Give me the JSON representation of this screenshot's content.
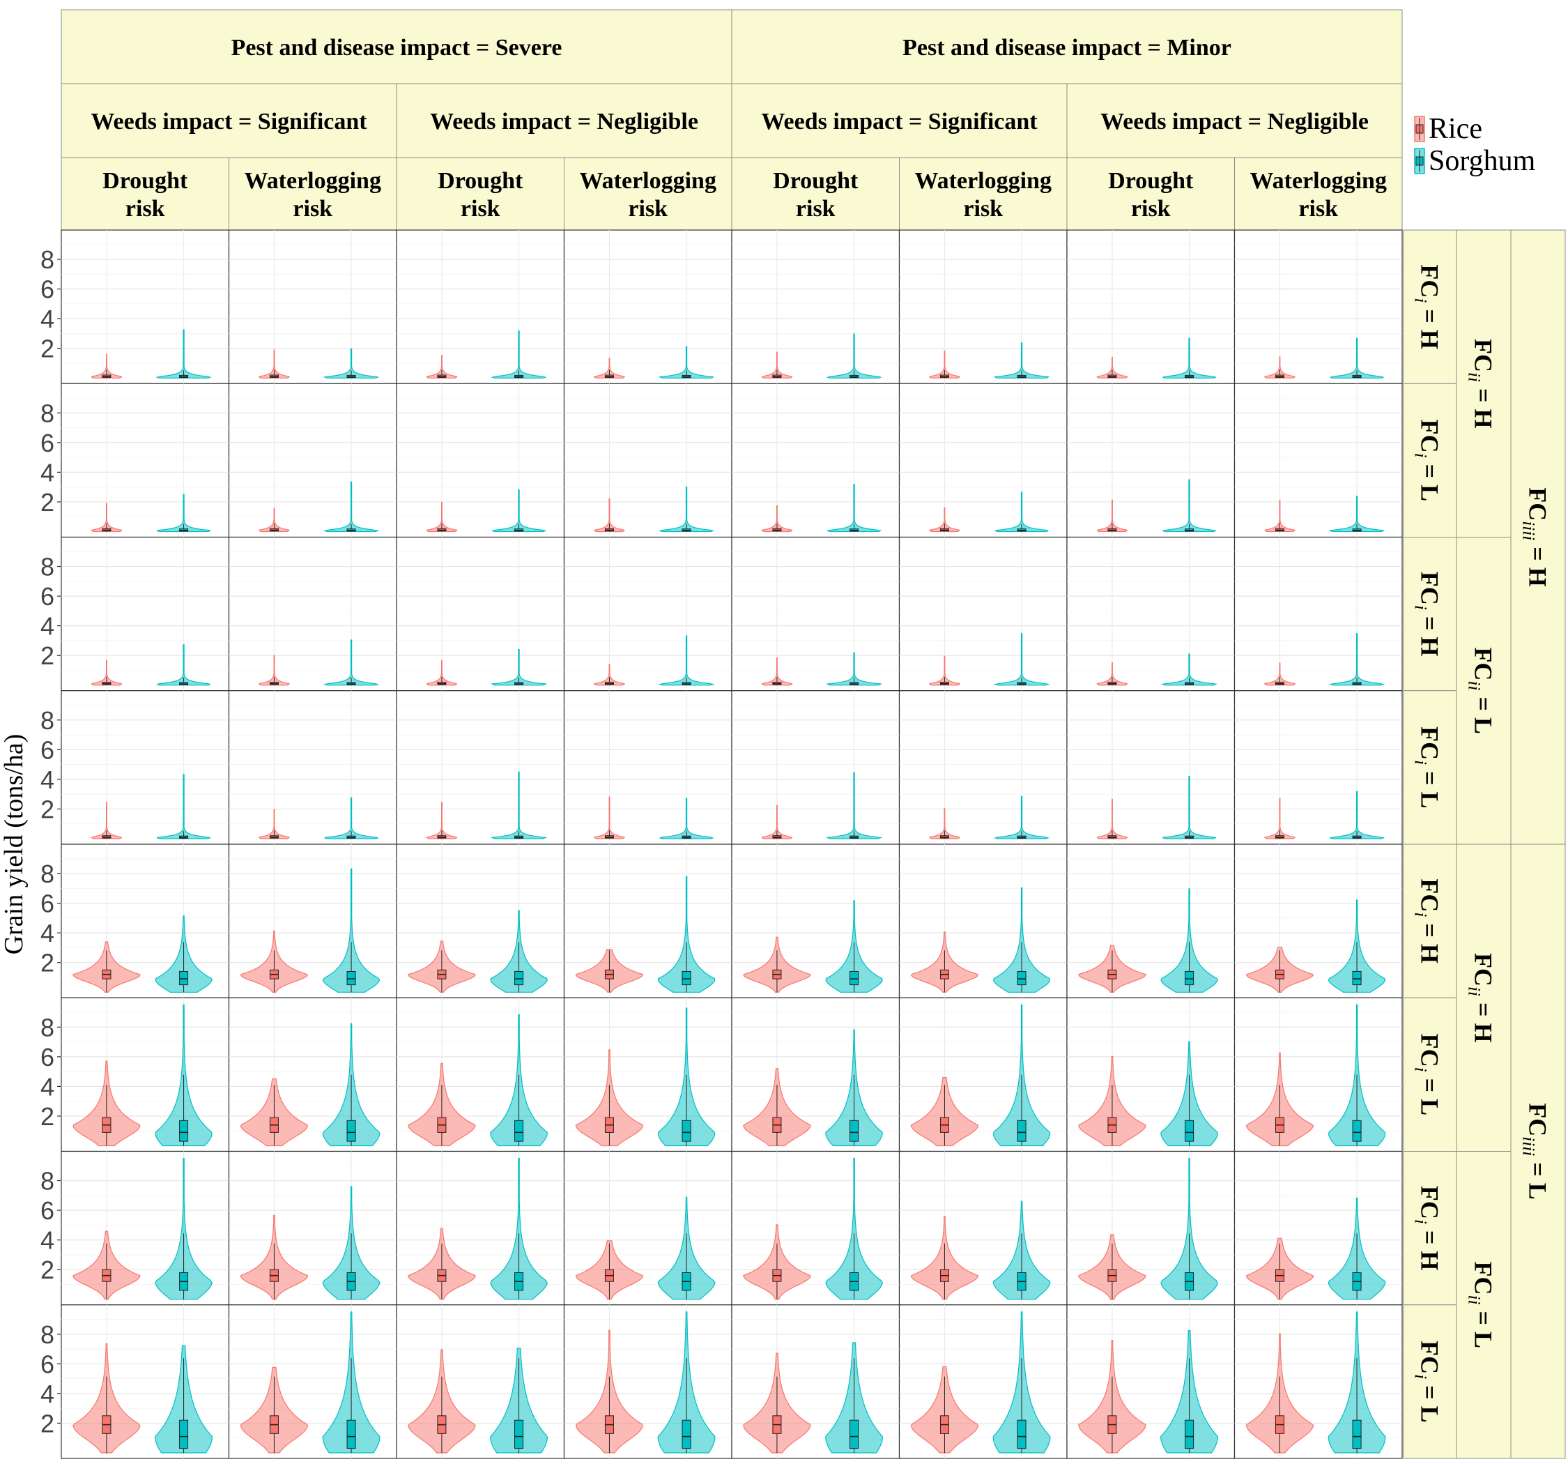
{
  "chart_data": {
    "type": "violin",
    "ylabel": "Grain yield (tons/ha)",
    "y_ticks": [
      2,
      4,
      6,
      8
    ],
    "ylim": [
      0,
      9.6
    ],
    "grid": true,
    "legend_position": "right",
    "legend": [
      {
        "name": "Rice",
        "color": "#F8766D"
      },
      {
        "name": "Sorghum",
        "color": "#00BFC4"
      }
    ],
    "col_strip_1": [
      "Pest and disease impact = Severe",
      "Pest and disease impact = Minor"
    ],
    "col_strip_2": [
      "Weeds impact = Significant",
      "Weeds impact = Negligible",
      "Weeds impact = Significant",
      "Weeds impact = Negligible"
    ],
    "col_strip_3": [
      [
        "Drought",
        "risk"
      ],
      [
        "Waterlogging",
        "risk"
      ],
      [
        "Drought",
        "risk"
      ],
      [
        "Waterlogging",
        "risk"
      ],
      [
        "Drought",
        "risk"
      ],
      [
        "Waterlogging",
        "risk"
      ],
      [
        "Drought",
        "risk"
      ],
      [
        "Waterlogging",
        "risk"
      ]
    ],
    "row_strip_fci": [
      {
        "prefix": "FC",
        "sub": "i",
        "suffix": " = H"
      },
      {
        "prefix": "FC",
        "sub": "i",
        "suffix": " = L"
      },
      {
        "prefix": "FC",
        "sub": "i",
        "suffix": " = H"
      },
      {
        "prefix": "FC",
        "sub": "i",
        "suffix": " = L"
      },
      {
        "prefix": "FC",
        "sub": "i",
        "suffix": " = H"
      },
      {
        "prefix": "FC",
        "sub": "i",
        "suffix": " = L"
      },
      {
        "prefix": "FC",
        "sub": "i",
        "suffix": " = H"
      },
      {
        "prefix": "FC",
        "sub": "i",
        "suffix": " = L"
      }
    ],
    "row_strip_fcii": [
      {
        "prefix": "FC",
        "sub": "ii",
        "suffix": " = H"
      },
      {
        "prefix": "FC",
        "sub": "ii",
        "suffix": " = L"
      },
      {
        "prefix": "FC",
        "sub": "ii",
        "suffix": " = H"
      },
      {
        "prefix": "FC",
        "sub": "ii",
        "suffix": " = L"
      }
    ],
    "row_strip_fciii": [
      {
        "prefix": "FC",
        "sub": "iiii",
        "suffix": " = H"
      },
      {
        "prefix": "FC",
        "sub": "iiii",
        "suffix": " = L"
      }
    ],
    "row_groups": [
      {
        "rice": {
          "median": 0.1,
          "q1": 0.04,
          "q3": 0.2,
          "max": 1.6,
          "width": 0.45
        },
        "sorghum": {
          "median": 0.08,
          "q1": 0.03,
          "q3": 0.18,
          "max": 2.6,
          "width": 0.8
        }
      },
      {
        "rice": {
          "median": 0.1,
          "q1": 0.04,
          "q3": 0.2,
          "max": 1.9,
          "width": 0.45
        },
        "sorghum": {
          "median": 0.08,
          "q1": 0.03,
          "q3": 0.18,
          "max": 3.0,
          "width": 0.8
        }
      },
      {
        "rice": {
          "median": 0.1,
          "q1": 0.04,
          "q3": 0.2,
          "max": 1.7,
          "width": 0.45
        },
        "sorghum": {
          "median": 0.08,
          "q1": 0.03,
          "q3": 0.18,
          "max": 2.8,
          "width": 0.8
        }
      },
      {
        "rice": {
          "median": 0.1,
          "q1": 0.04,
          "q3": 0.2,
          "max": 2.4,
          "width": 0.45
        },
        "sorghum": {
          "median": 0.08,
          "q1": 0.03,
          "q3": 0.18,
          "max": 3.6,
          "width": 0.8
        }
      },
      {
        "rice": {
          "median": 1.2,
          "q1": 0.9,
          "q3": 1.5,
          "max": 3.5,
          "width": 1.0
        },
        "sorghum": {
          "median": 0.9,
          "q1": 0.5,
          "q3": 1.4,
          "max": 6.8,
          "width": 0.85
        }
      },
      {
        "rice": {
          "median": 1.4,
          "q1": 0.9,
          "q3": 1.9,
          "max": 5.5,
          "width": 1.0
        },
        "sorghum": {
          "median": 0.9,
          "q1": 0.3,
          "q3": 1.7,
          "max": 8.8,
          "width": 0.85
        }
      },
      {
        "rice": {
          "median": 1.6,
          "q1": 1.2,
          "q3": 2.0,
          "max": 4.8,
          "width": 1.0
        },
        "sorghum": {
          "median": 1.2,
          "q1": 0.6,
          "q3": 1.8,
          "max": 8.8,
          "width": 0.85
        }
      },
      {
        "rice": {
          "median": 1.9,
          "q1": 1.3,
          "q3": 2.5,
          "max": 7.0,
          "width": 1.0
        },
        "sorghum": {
          "median": 1.1,
          "q1": 0.3,
          "q3": 2.2,
          "max": 9.4,
          "width": 0.85
        }
      }
    ]
  }
}
